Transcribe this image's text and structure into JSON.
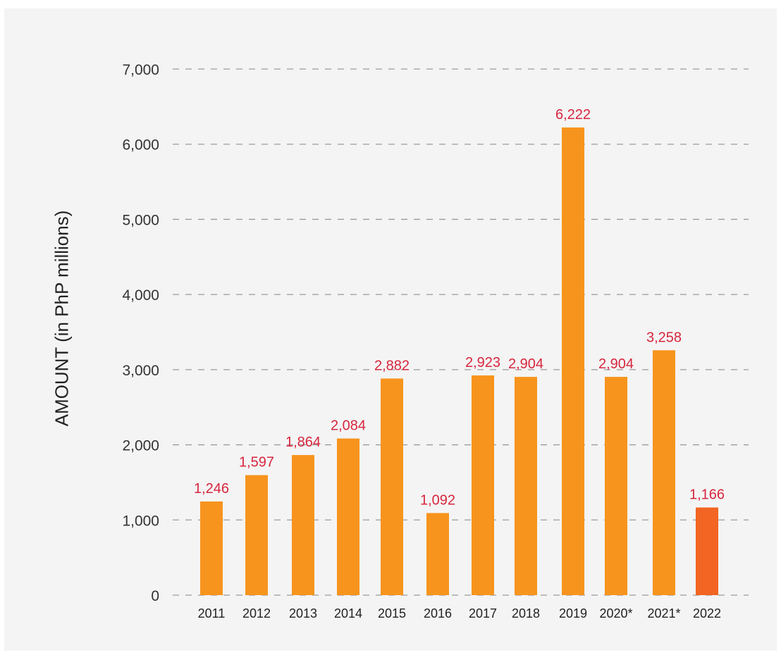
{
  "chart_data": {
    "type": "bar",
    "ylabel": "AMOUNT (in PhP millions)",
    "xlabel": "",
    "categories": [
      "2011",
      "2012",
      "2013",
      "2014",
      "2015",
      "2016",
      "2017",
      "2018",
      "2019",
      "2020*",
      "2021*",
      "2022"
    ],
    "values": [
      1246,
      1597,
      1864,
      2084,
      2882,
      1092,
      2923,
      2904,
      6222,
      2904,
      3258,
      1166
    ],
    "value_labels": [
      "1,246",
      "1,597",
      "1,864",
      "2,084",
      "2,882",
      "1,092",
      "2,923",
      "2,904",
      "6,222",
      "2,904",
      "3,258",
      "1,166"
    ],
    "ylim": [
      0,
      7000
    ],
    "yticks": [
      {
        "value": 0,
        "label": "0"
      },
      {
        "value": 1000,
        "label": "1,000"
      },
      {
        "value": 2000,
        "label": "2,000"
      },
      {
        "value": 3000,
        "label": "3,000"
      },
      {
        "value": 4000,
        "label": "4,000"
      },
      {
        "value": 5000,
        "label": "5,000"
      },
      {
        "value": 6000,
        "label": "6,000"
      },
      {
        "value": 7000,
        "label": "7,000"
      }
    ],
    "grid": "dashed horizontal",
    "legend": "none",
    "colors": {
      "bar": "#F7941D",
      "highlight_bar": "#F26522",
      "highlight_category": "2022",
      "data_label": "#D7263D",
      "grid": "#9a9a9a",
      "background": "#f4f4f4"
    }
  }
}
